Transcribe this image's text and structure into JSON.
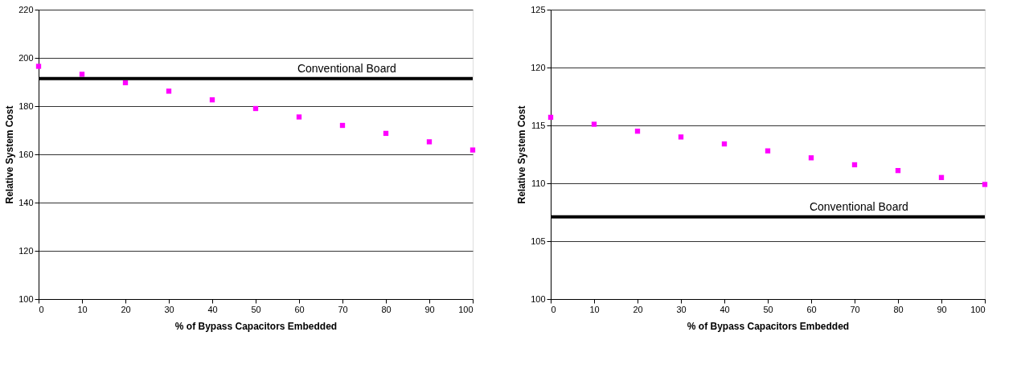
{
  "chart_data": [
    {
      "type": "scatter",
      "xlabel": "% of Bypass Capacitors Embedded",
      "ylabel": "Relative System Cost",
      "x": [
        0,
        10,
        20,
        30,
        40,
        50,
        60,
        70,
        80,
        90,
        100
      ],
      "series": [
        {
          "color": "#ff00ff",
          "values": [
            196.5,
            193.2,
            189.7,
            186.2,
            182.6,
            179.0,
            175.5,
            172.0,
            168.7,
            165.2,
            161.8
          ]
        }
      ],
      "xlim": [
        0,
        100
      ],
      "xticks": [
        0,
        10,
        20,
        30,
        40,
        50,
        60,
        70,
        80,
        90,
        100
      ],
      "ylim": [
        100,
        220
      ],
      "yticks": [
        100,
        120,
        140,
        160,
        180,
        200,
        220
      ],
      "ref_lines": [
        {
          "axis": "y",
          "value": 191.4,
          "label": "Conventional Board",
          "color": "#000000"
        }
      ],
      "grid": "y",
      "marker": "square"
    },
    {
      "type": "scatter",
      "xlabel": "% of Bypass Capacitors Embedded",
      "ylabel": "Relative System Cost",
      "x": [
        0,
        10,
        20,
        30,
        40,
        50,
        60,
        70,
        80,
        90,
        100
      ],
      "series": [
        {
          "color": "#ff00ff",
          "values": [
            115.7,
            115.1,
            114.5,
            114.0,
            113.4,
            112.8,
            112.2,
            111.6,
            111.1,
            110.5,
            109.9
          ]
        }
      ],
      "xlim": [
        0,
        100
      ],
      "xticks": [
        0,
        10,
        20,
        30,
        40,
        50,
        60,
        70,
        80,
        90,
        100
      ],
      "ylim": [
        100,
        125
      ],
      "yticks": [
        100,
        105,
        110,
        115,
        120,
        125
      ],
      "ref_lines": [
        {
          "axis": "y",
          "value": 107.1,
          "label": "Conventional Board",
          "color": "#000000"
        }
      ],
      "grid": "y",
      "marker": "square"
    }
  ]
}
